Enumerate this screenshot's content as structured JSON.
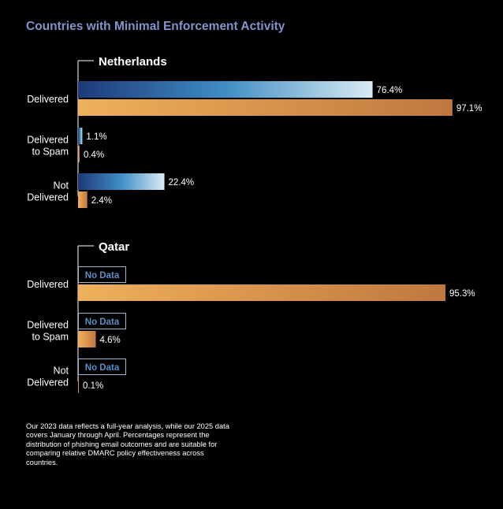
{
  "title": "Countries with Minimal Enforcement Activity",
  "footnote": "Our 2023 data reflects a full-year analysis, while our 2025 data covers January through April. Percentages represent the distribution of phishing email outcomes and are suitable for comparing relative DMARC policy effectiveness across countries.",
  "colors": {
    "title": "#8294cc",
    "series_2023": [
      "#1d3a78",
      "#3f8ec4",
      "#d9ecf2"
    ],
    "series_2025": [
      "#eeb15a",
      "#c0773e"
    ],
    "no_data_border": "#9fb6d0",
    "no_data_text": "#5b8ec7"
  },
  "chart_data": [
    {
      "type": "bar",
      "orientation": "horizontal",
      "title": "Netherlands",
      "categories": [
        [
          "Delivered"
        ],
        [
          "Delivered",
          "to Spam"
        ],
        [
          "Not",
          "Delivered"
        ]
      ],
      "xlim": [
        0,
        100
      ],
      "series": [
        {
          "values": [
            76.4,
            1.1,
            22.4
          ],
          "labels": [
            "76.4%",
            "1.1%",
            "22.4%"
          ]
        },
        {
          "values": [
            97.1,
            0.4,
            2.4
          ],
          "labels": [
            "97.1%",
            "0.4%",
            "2.4%"
          ]
        }
      ]
    },
    {
      "type": "bar",
      "orientation": "horizontal",
      "title": "Qatar",
      "categories": [
        [
          "Delivered"
        ],
        [
          "Delivered",
          "to Spam"
        ],
        [
          "Not",
          "Delivered"
        ]
      ],
      "xlim": [
        0,
        100
      ],
      "series": [
        {
          "values": [
            null,
            null,
            null
          ],
          "labels": [
            "No Data",
            "No Data",
            "No Data"
          ]
        },
        {
          "values": [
            95.3,
            4.6,
            0.1
          ],
          "labels": [
            "95.3%",
            "4.6%",
            "0.1%"
          ]
        }
      ]
    }
  ]
}
